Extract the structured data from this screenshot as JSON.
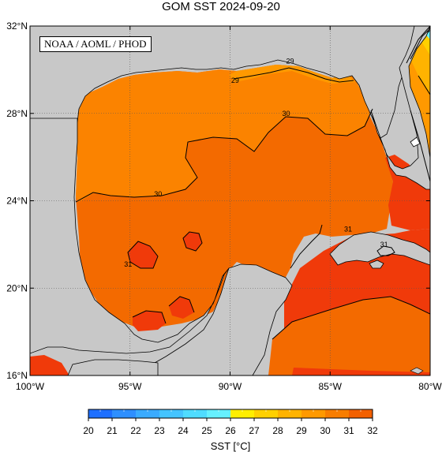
{
  "title": "GOM SST  2024-09-20",
  "credit": "NOAA / AOML / PHOD",
  "colors": {
    "land": "#c8c8c8",
    "sst_28_29": "#ff9900",
    "sst_29_30": "#fb8300",
    "sst_30_31": "#f36a00",
    "sst_31_32": "#f03a0a",
    "contour": "#000000",
    "grid": "#555555"
  },
  "map": {
    "lon_range": [
      -100,
      -80
    ],
    "lat_range": [
      16,
      32
    ],
    "lon_ticks": [
      "100°W",
      "95°W",
      "90°W",
      "85°W",
      "80°W"
    ],
    "lat_ticks": [
      "32°N",
      "28°N",
      "24°N",
      "20°N",
      "16°N"
    ],
    "contour_labels": [
      {
        "text": "29",
        "lon": -89.75,
        "lat": 29.5
      },
      {
        "text": "29",
        "lon": -87.0,
        "lat": 30.4
      },
      {
        "text": "30",
        "lon": -87.2,
        "lat": 28.0
      },
      {
        "text": "30",
        "lon": -93.6,
        "lat": 24.3
      },
      {
        "text": "31",
        "lon": -95.1,
        "lat": 21.1
      },
      {
        "text": "31",
        "lon": -84.1,
        "lat": 22.7
      },
      {
        "text": "31",
        "lon": -82.3,
        "lat": 22.0
      }
    ]
  },
  "colorbar": {
    "min": 20,
    "max": 32,
    "ticks": [
      "20",
      "21",
      "22",
      "23",
      "24",
      "25",
      "26",
      "27",
      "28",
      "29",
      "30",
      "31",
      "32"
    ],
    "colors": [
      "#1e6fff",
      "#2e8fff",
      "#3aabff",
      "#44c4ff",
      "#4fdcff",
      "#66f0ff",
      "#ffee00",
      "#ffd000",
      "#ffb300",
      "#ff9900",
      "#f87d00",
      "#f36000"
    ],
    "label": "SST [°C]"
  }
}
